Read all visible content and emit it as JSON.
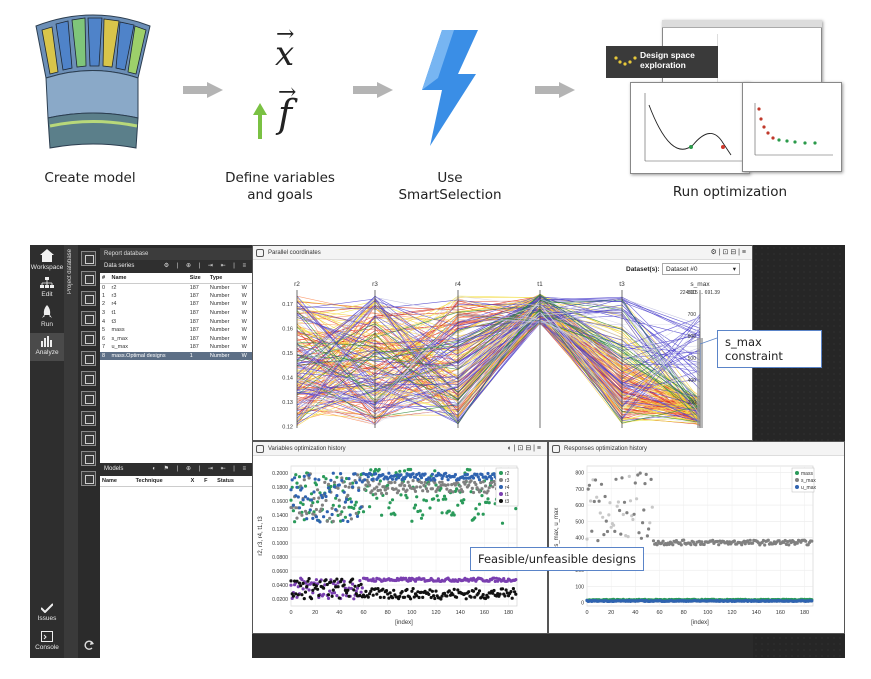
{
  "workflow": {
    "steps": [
      {
        "label": "Create model"
      },
      {
        "label_line1": "Define variables",
        "label_line2": "and goals",
        "vec_x": "x",
        "vec_f": "f"
      },
      {
        "label": "Use SmartSelection"
      },
      {
        "label": "Run optimization",
        "card_title_line1": "Design space",
        "card_title_line2": "exploration"
      }
    ]
  },
  "sidebar": {
    "items": [
      {
        "label": "Workspace"
      },
      {
        "label": "Edit"
      },
      {
        "label": "Run"
      },
      {
        "label": "Analyze"
      },
      {
        "label": "Issues"
      },
      {
        "label": "Console"
      }
    ],
    "vertical_tab": "Project database"
  },
  "report": {
    "title": "Report database",
    "data_series": {
      "title": "Data series",
      "columns": [
        "#",
        "Name",
        "Size",
        "Type",
        ""
      ],
      "rows": [
        {
          "idx": "0",
          "name": "r2",
          "size": "187",
          "type": "Number",
          "extra": "W"
        },
        {
          "idx": "1",
          "name": "r3",
          "size": "187",
          "type": "Number",
          "extra": "W"
        },
        {
          "idx": "2",
          "name": "r4",
          "size": "187",
          "type": "Number",
          "extra": "W"
        },
        {
          "idx": "3",
          "name": "t1",
          "size": "187",
          "type": "Number",
          "extra": "W"
        },
        {
          "idx": "4",
          "name": "t3",
          "size": "187",
          "type": "Number",
          "extra": "W"
        },
        {
          "idx": "5",
          "name": "mass",
          "size": "187",
          "type": "Number",
          "extra": "W"
        },
        {
          "idx": "6",
          "name": "s_max",
          "size": "187",
          "type": "Number",
          "extra": "W"
        },
        {
          "idx": "7",
          "name": "u_max",
          "size": "187",
          "type": "Number",
          "extra": "W"
        },
        {
          "idx": "8",
          "name": "mass.Optimal designs",
          "size": "1",
          "type": "Number",
          "extra": "W"
        }
      ]
    },
    "models": {
      "title": "Models",
      "columns": [
        "Name",
        "Technique",
        "X",
        "F",
        "Status"
      ]
    }
  },
  "parallel": {
    "title": "Parallel coordinates",
    "dataset_label": "Dataset(s):",
    "dataset_value": "Dataset #0",
    "axes": [
      "r2",
      "r3",
      "r4",
      "t1",
      "t3",
      "s_max"
    ],
    "smax_range": "224.115 ... 691.39",
    "r2_ticks": [
      "0.17",
      "0.16",
      "0.15",
      "0.14",
      "0.13",
      "0.12"
    ],
    "smax_ticks": [
      "800",
      "700",
      "600",
      "500",
      "400",
      "300"
    ]
  },
  "callouts": {
    "smax": "s_max constraint",
    "feasible": "Feasible/unfeasible designs"
  },
  "chart_data": [
    {
      "type": "scatter",
      "title": "Variables optimization history",
      "xlabel": "[index]",
      "ylabel": "r2, r3, r4, t1, t3",
      "xlim": [
        0,
        187
      ],
      "ylim": [
        0.01,
        0.21
      ],
      "x_ticks": [
        "0",
        "20",
        "40",
        "60",
        "80",
        "100",
        "120",
        "140",
        "160",
        "180"
      ],
      "y_ticks": [
        "0.2000",
        "0.1800",
        "0.1600",
        "0.1400",
        "0.1200",
        "0.1000",
        "0.0800",
        "0.0600",
        "0.0400",
        "0.0200"
      ],
      "legend_position": "top-right",
      "series": [
        {
          "name": "r2",
          "color": "#2a9a5a",
          "band": [
            0.12,
            0.18
          ]
        },
        {
          "name": "r3",
          "color": "#808080",
          "band": [
            0.17,
            0.19
          ]
        },
        {
          "name": "r4",
          "color": "#2f63b0",
          "band": [
            0.19,
            0.2
          ]
        },
        {
          "name": "t1",
          "color": "#7a3fb0",
          "band": [
            0.045,
            0.05
          ]
        },
        {
          "name": "t3",
          "color": "#111111",
          "band": [
            0.02,
            0.035
          ]
        }
      ]
    },
    {
      "type": "scatter",
      "title": "Responses optimization history",
      "xlabel": "[index]",
      "ylabel": "mass, s_max, u_max",
      "xlim": [
        0,
        187
      ],
      "ylim": [
        -20,
        840
      ],
      "x_ticks": [
        "0",
        "20",
        "40",
        "60",
        "80",
        "100",
        "120",
        "140",
        "160",
        "180"
      ],
      "y_ticks": [
        "800",
        "700",
        "600",
        "500",
        "400",
        "300",
        "200",
        "100",
        "0"
      ],
      "legend_position": "top-right",
      "series": [
        {
          "name": "mass",
          "color": "#2a9a5a",
          "level": 15
        },
        {
          "name": "s_max",
          "color": "#808080",
          "level": 370
        },
        {
          "name": "u_max",
          "color": "#2f63b0",
          "level": 8
        }
      ]
    }
  ]
}
